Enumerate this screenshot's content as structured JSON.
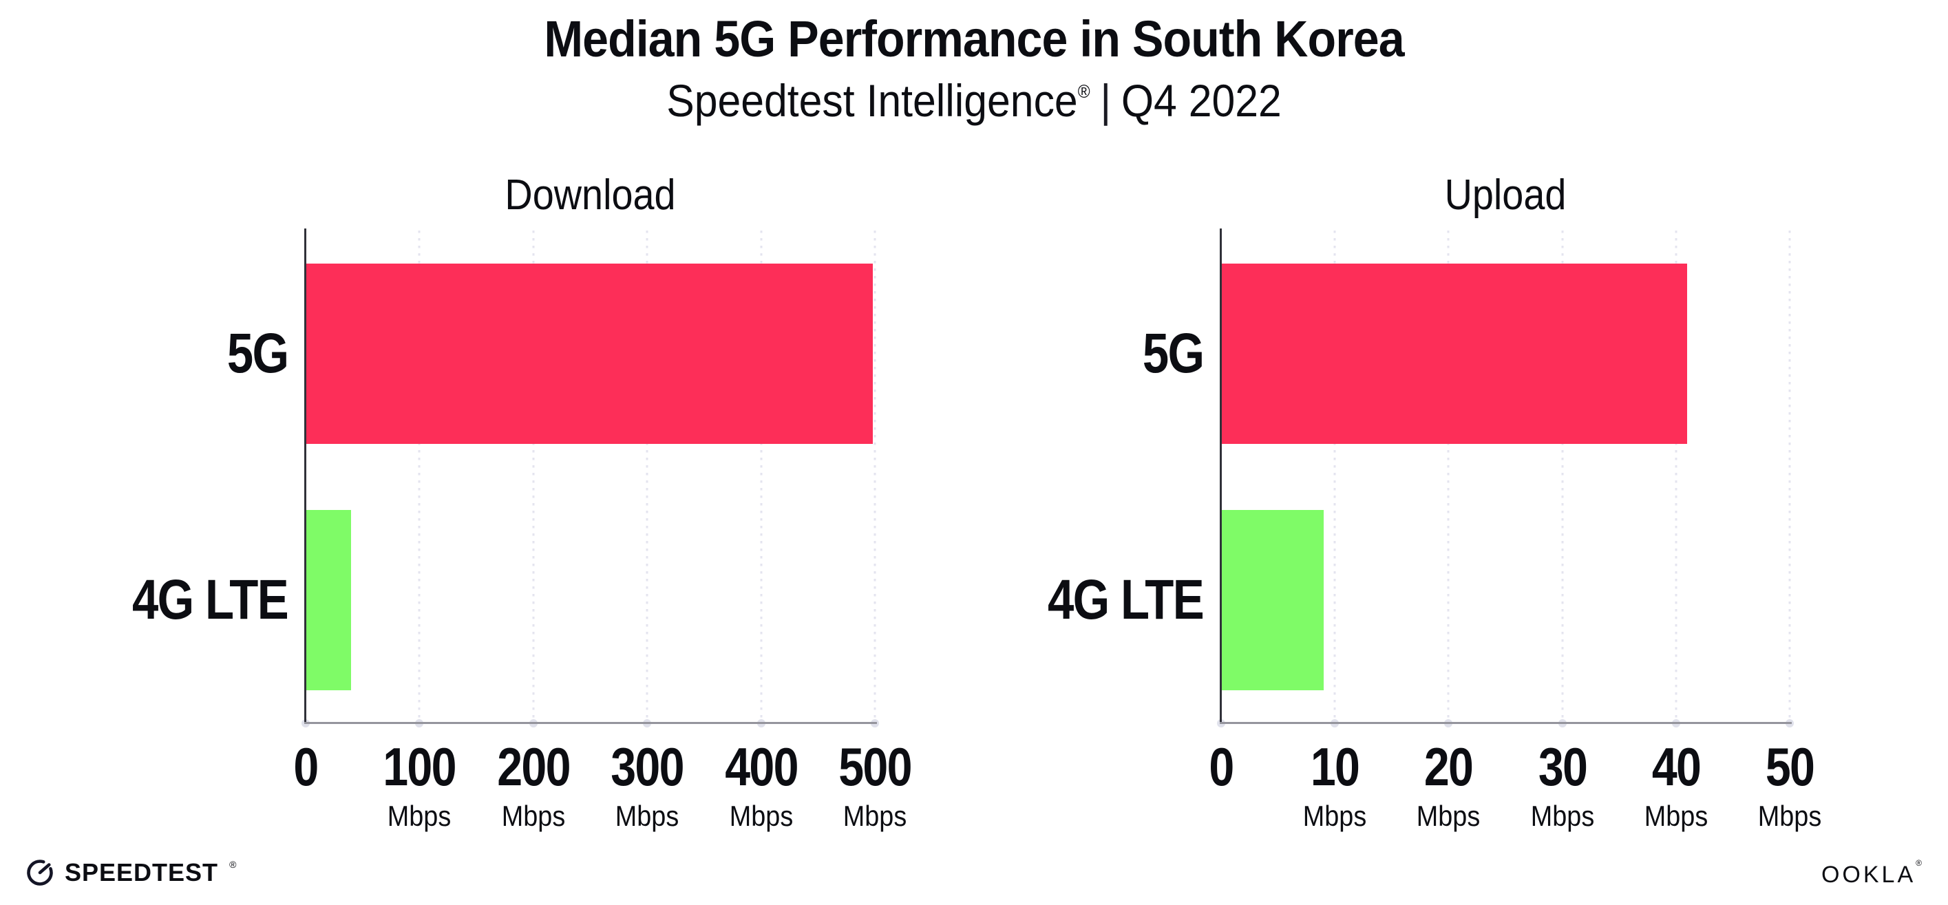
{
  "header": {
    "title": "Median 5G Performance in South Korea",
    "subtitle_brand": "Speedtest Intelligence",
    "subtitle_trademark": "®",
    "subtitle_separator": "|",
    "subtitle_period": "Q4 2022"
  },
  "chart_data": [
    {
      "type": "bar",
      "orientation": "horizontal",
      "title": "Download",
      "categories": [
        "5G",
        "4G LTE"
      ],
      "values": [
        498,
        40
      ],
      "value_unit": "Mbps",
      "xlim": [
        0,
        500
      ],
      "xticks": [
        0,
        100,
        200,
        300,
        400,
        500
      ],
      "xtick_unit": "Mbps",
      "grid": "vertical-dotted",
      "legend": "none",
      "bar_colors": [
        "#fd2e58",
        "#7ffb67"
      ]
    },
    {
      "type": "bar",
      "orientation": "horizontal",
      "title": "Upload",
      "categories": [
        "5G",
        "4G LTE"
      ],
      "values": [
        41,
        9
      ],
      "value_unit": "Mbps",
      "xlim": [
        0,
        50
      ],
      "xticks": [
        0,
        10,
        20,
        30,
        40,
        50
      ],
      "xtick_unit": "Mbps",
      "grid": "vertical-dotted",
      "legend": "none",
      "bar_colors": [
        "#fd2e58",
        "#7ffb67"
      ]
    }
  ],
  "colors": {
    "bar_5g": "#fd2e58",
    "bar_4g_lte": "#7ffb67",
    "gridline": "#e4e4ef",
    "x_axis": "#95959d",
    "y_axis": "#303139",
    "text": "#0c0d12"
  },
  "footer": {
    "speedtest_text": "SPEEDTEST",
    "speedtest_trademark": "®",
    "ookla_text": "OOKLA",
    "ookla_trademark": "®"
  }
}
